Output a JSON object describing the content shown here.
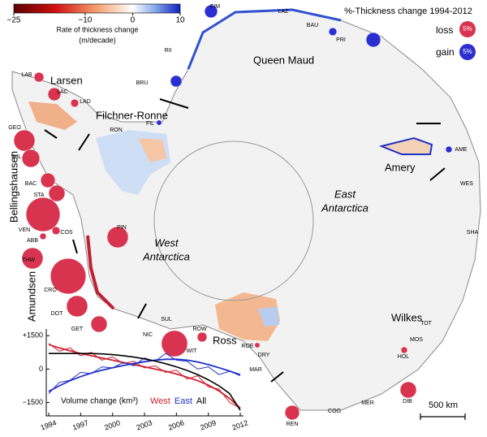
{
  "colorbar": {
    "label": [
      "Rate of thickness change",
      "(m/decade)"
    ],
    "lim": [
      -25,
      10
    ],
    "ticks": [
      {
        "value": -25,
        "label": "−25"
      },
      {
        "value": -10,
        "label": "−10"
      },
      0,
      10
    ]
  },
  "legend": {
    "title": "%-Thickness change 1994-2012",
    "loss": {
      "label": "loss",
      "color": "#d8344f"
    },
    "gain": {
      "label": "gain",
      "color": "#2b2fd0"
    },
    "size": 5,
    "size_label": "5%"
  },
  "regions": [
    "Larsen",
    "Bellingshausen",
    "Amundsen",
    "Queen Maud",
    "Filchner-Ronne",
    "Amery",
    "Wilkes",
    "Ross"
  ],
  "west_antarctica": [
    "West",
    "Antarctica"
  ],
  "east_antarctica": [
    "East",
    "Antarctica"
  ],
  "ice_shelves": [
    {
      "name": "LAB",
      "change": -1.8
    },
    {
      "name": "LAC",
      "change": -3.2
    },
    {
      "name": "LAD",
      "change": -1.2
    },
    {
      "name": "GEO",
      "change": -8.5
    },
    {
      "name": "WIL",
      "change": -6
    },
    {
      "name": "BAC",
      "change": -4
    },
    {
      "name": "STA",
      "change": -5
    },
    {
      "name": "VEN",
      "change": -22
    },
    {
      "name": "ABB",
      "change": -0.8
    },
    {
      "name": "COS",
      "change": -1.2
    },
    {
      "name": "PIN",
      "change": -8.5
    },
    {
      "name": "THW",
      "change": -8.5
    },
    {
      "name": "CRO",
      "change": -24
    },
    {
      "name": "DOT",
      "change": -8.5
    },
    {
      "name": "GET",
      "change": -5
    },
    {
      "name": "NIC",
      "change": null
    },
    {
      "name": "SUL",
      "change": null
    },
    {
      "name": "ROW",
      "change": -1.8
    },
    {
      "name": "WIT",
      "change": -13
    },
    {
      "name": "ROE",
      "change": -0.5
    },
    {
      "name": "DRY",
      "change": null
    },
    {
      "name": "MAR",
      "change": null
    },
    {
      "name": "REN",
      "change": -4
    },
    {
      "name": "COO",
      "change": null
    },
    {
      "name": "MER",
      "change": null
    },
    {
      "name": "DIB",
      "change": -5
    },
    {
      "name": "HOL",
      "change": -0.8
    },
    {
      "name": "MOS",
      "change": null
    },
    {
      "name": "TOT",
      "change": null
    },
    {
      "name": "SHA",
      "change": null
    },
    {
      "name": "WES",
      "change": null
    },
    {
      "name": "AME",
      "change": 0.8
    },
    {
      "name": "FIL",
      "change": 0.5
    },
    {
      "name": "RON",
      "change": null
    },
    {
      "name": "BRU",
      "change": 2.5
    },
    {
      "name": "RII",
      "change": null
    },
    {
      "name": "FIM",
      "change": 3.2
    },
    {
      "name": "LAZ",
      "change": null
    },
    {
      "name": "BAU",
      "change": 1.2
    },
    {
      "name": "PRI",
      "change": 4
    }
  ],
  "scale_bar": "500 km",
  "chart_data": {
    "type": "line",
    "y_label": "Volume change (km³)",
    "x": [
      1994,
      1995,
      1996,
      1997,
      1998,
      1999,
      2000,
      2001,
      2002,
      2003,
      2004,
      2005,
      2006,
      2007,
      2008,
      2009,
      2010,
      2011,
      2012
    ],
    "xlim": [
      1994,
      2012
    ],
    "xticks": [
      1994,
      1997,
      2000,
      2003,
      2006,
      2009,
      2012
    ],
    "ylim": [
      -2100,
      1800
    ],
    "yticks": [
      {
        "value": 1500,
        "label": "+1500"
      },
      0,
      {
        "value": -1500,
        "label": "−1500"
      }
    ],
    "series": [
      {
        "name": "West",
        "color": "#d02030",
        "values": [
          1150,
          800,
          950,
          600,
          750,
          400,
          550,
          250,
          350,
          50,
          150,
          -150,
          -50,
          -450,
          -300,
          -800,
          -900,
          -1500,
          -1750
        ],
        "fit": [
          1100,
          950,
          820,
          700,
          600,
          500,
          400,
          300,
          200,
          100,
          0,
          -100,
          -220,
          -360,
          -520,
          -720,
          -980,
          -1320,
          -1750
        ]
      },
      {
        "name": "East",
        "color": "#2030c8",
        "values": [
          -1100,
          -600,
          -500,
          -150,
          -200,
          100,
          50,
          300,
          150,
          500,
          350,
          700,
          400,
          350,
          0,
          100,
          -250,
          -100,
          -300
        ],
        "fit": [
          -1000,
          -750,
          -520,
          -340,
          -180,
          -50,
          60,
          160,
          250,
          330,
          400,
          440,
          440,
          400,
          320,
          200,
          60,
          -90,
          -250
        ]
      },
      {
        "name": "All",
        "color": "#000000",
        "values": [
          700,
          700,
          700,
          700,
          700,
          680,
          650,
          600,
          540,
          460,
          360,
          240,
          100,
          -60,
          -250,
          -480,
          -750,
          -1100,
          -1850
        ]
      }
    ]
  }
}
